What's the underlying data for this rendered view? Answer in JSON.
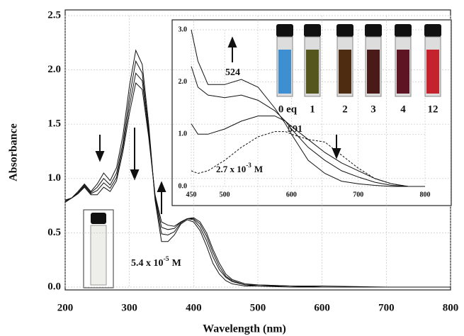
{
  "chart_data": [
    {
      "type": "line",
      "x_label": "Wavelength (nm)",
      "y_label": "Absorbance",
      "xlim": [
        200,
        800
      ],
      "ylim": [
        0,
        2.5
      ],
      "xticks": [
        200,
        300,
        400,
        500,
        600,
        700,
        800
      ],
      "yticks": [
        {
          "value": 0,
          "label": "0.0"
        },
        0.5,
        {
          "value": 1,
          "label": "1.0"
        },
        1.5,
        {
          "value": 2,
          "label": "2.0"
        },
        2.5
      ],
      "grid": true,
      "annotation": {
        "base": "5.4 x 10",
        "exp": "-5",
        "unit": "M"
      },
      "x": [
        200,
        210,
        220,
        230,
        240,
        250,
        260,
        270,
        280,
        290,
        300,
        310,
        320,
        330,
        340,
        350,
        360,
        370,
        380,
        390,
        400,
        410,
        420,
        430,
        440,
        450,
        460,
        480,
        500,
        550,
        600,
        700,
        800
      ],
      "series": [
        {
          "color": "#111111",
          "values": [
            0.78,
            0.82,
            0.88,
            0.95,
            0.88,
            0.95,
            1.05,
            0.98,
            1.1,
            1.4,
            1.85,
            2.18,
            2.05,
            1.5,
            0.8,
            0.42,
            0.42,
            0.48,
            0.58,
            0.62,
            0.6,
            0.52,
            0.38,
            0.22,
            0.12,
            0.06,
            0.03,
            0.01,
            0.01,
            0,
            0,
            0,
            0
          ]
        },
        {
          "color": "#111111",
          "values": [
            0.79,
            0.82,
            0.87,
            0.94,
            0.87,
            0.92,
            1.0,
            0.94,
            1.05,
            1.33,
            1.75,
            2.08,
            1.97,
            1.45,
            0.82,
            0.49,
            0.48,
            0.51,
            0.59,
            0.63,
            0.62,
            0.55,
            0.43,
            0.28,
            0.16,
            0.09,
            0.05,
            0.02,
            0.01,
            0.01,
            0,
            0,
            0
          ]
        },
        {
          "color": "#111111",
          "values": [
            0.8,
            0.82,
            0.86,
            0.93,
            0.86,
            0.89,
            0.96,
            0.91,
            1.01,
            1.29,
            1.67,
            1.97,
            1.9,
            1.41,
            0.84,
            0.55,
            0.53,
            0.54,
            0.6,
            0.63,
            0.63,
            0.58,
            0.47,
            0.32,
            0.19,
            0.1,
            0.06,
            0.02,
            0.02,
            0.01,
            0,
            0,
            0
          ]
        },
        {
          "color": "#111111",
          "values": [
            0.8,
            0.82,
            0.86,
            0.92,
            0.85,
            0.85,
            0.92,
            0.88,
            0.98,
            1.25,
            1.6,
            1.88,
            1.82,
            1.38,
            0.85,
            0.6,
            0.57,
            0.56,
            0.6,
            0.63,
            0.64,
            0.6,
            0.5,
            0.35,
            0.22,
            0.12,
            0.07,
            0.03,
            0.02,
            0.01,
            0.01,
            0,
            0
          ]
        }
      ]
    },
    {
      "type": "line",
      "xlim": [
        450,
        800
      ],
      "ylim": [
        0,
        3
      ],
      "xticks": [
        450,
        500,
        600,
        700,
        800
      ],
      "yticks": [
        {
          "value": 0,
          "label": "0.0"
        },
        {
          "value": 1,
          "label": "1.0"
        },
        {
          "value": 2,
          "label": "2.0"
        },
        {
          "value": 3,
          "label": "3.0"
        }
      ],
      "grid": true,
      "peak_labels": [
        "524",
        "591"
      ],
      "annotation": {
        "base": "2.7 x 10",
        "exp": "-3",
        "unit": "M"
      },
      "vials": [
        {
          "label": "0 eq",
          "color": "#3d8fd2"
        },
        {
          "label": "1",
          "color": "#55561e"
        },
        {
          "label": "2",
          "color": "#4d2c12"
        },
        {
          "label": "3",
          "color": "#4a1a18"
        },
        {
          "label": "4",
          "color": "#5e1422"
        },
        {
          "label": "12",
          "color": "#c4222c"
        }
      ],
      "x": [
        450,
        460,
        475,
        500,
        525,
        550,
        575,
        591,
        600,
        625,
        650,
        675,
        700,
        725,
        750,
        775,
        800
      ],
      "series": [
        {
          "color": "#111111",
          "values": [
            0.3,
            0.25,
            0.3,
            0.5,
            0.75,
            0.95,
            1.05,
            1.05,
            1.0,
            0.9,
            0.85,
            0.6,
            0.35,
            0.15,
            0.05,
            0,
            0
          ]
        },
        {
          "color": "#111111",
          "values": [
            1.2,
            1.0,
            1.0,
            1.1,
            1.25,
            1.35,
            1.35,
            1.25,
            1.15,
            0.9,
            0.65,
            0.45,
            0.3,
            0.15,
            0.05,
            0,
            0
          ]
        },
        {
          "color": "#111111",
          "values": [
            2.3,
            1.9,
            1.75,
            1.7,
            1.75,
            1.65,
            1.45,
            1.25,
            1.1,
            0.75,
            0.5,
            0.3,
            0.18,
            0.08,
            0.02,
            0,
            0
          ]
        },
        {
          "color": "#111111",
          "values": [
            3.0,
            2.4,
            1.95,
            1.95,
            2.05,
            1.9,
            1.5,
            1.2,
            1.0,
            0.5,
            0.25,
            0.1,
            0.05,
            0.02,
            0,
            0,
            0
          ]
        }
      ]
    }
  ]
}
